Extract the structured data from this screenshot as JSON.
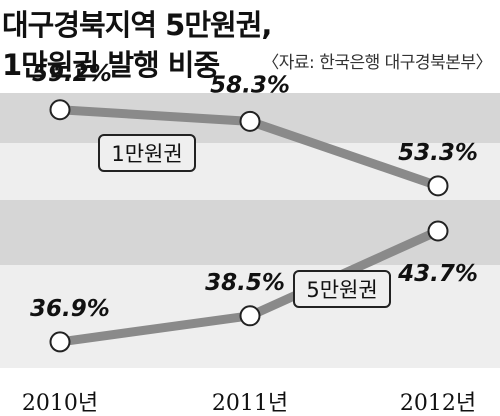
{
  "title_line1": "대구경북지역 5만원권,",
  "title_line2": "1만원권 발행 비중",
  "source": "〈자료: 한국은행 대구경북본부〉",
  "colors": {
    "band_dark": "#d6d6d6",
    "band_light": "#eeeeee",
    "line": "#8a8a8a",
    "box_fill": "#efefef",
    "marker_fill": "#ffffff"
  },
  "chart_data": {
    "type": "line",
    "categories": [
      "2010년",
      "2011년",
      "2012년"
    ],
    "series": [
      {
        "name": "1만원권",
        "values": [
          59.2,
          58.3,
          53.3
        ],
        "labels": [
          "59.2%",
          "58.3%",
          "53.3%"
        ]
      },
      {
        "name": "5만원권",
        "values": [
          36.9,
          38.5,
          43.7
        ],
        "labels": [
          "36.9%",
          "38.5%",
          "43.7%"
        ]
      }
    ],
    "grid": false,
    "legend": "inline boxes on lines"
  }
}
